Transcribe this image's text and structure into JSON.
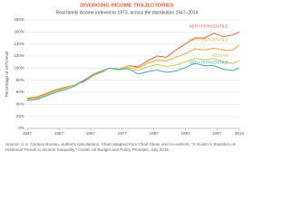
{
  "chart_data": {
    "type": "line",
    "title": "DIVERGING INCOME TRAJECTORIES",
    "subtitle": "Real family income indexed to 1973, across the distribution 1947–2014",
    "y_label": "Percentage of 1973 level",
    "x": [
      1947,
      1950,
      1953,
      1956,
      1959,
      1962,
      1965,
      1968,
      1971,
      1973,
      1976,
      1979,
      1982,
      1985,
      1988,
      1991,
      1994,
      1997,
      2000,
      2003,
      2006,
      2009,
      2012,
      2014
    ],
    "series": [
      {
        "name": "95TH PERCENTILE",
        "color": "#e8624a",
        "values": [
          50,
          52,
          58,
          64,
          68,
          72,
          78,
          88,
          94,
          100,
          98,
          104,
          102,
          112,
          120,
          118,
          130,
          140,
          150,
          150,
          158,
          152,
          155,
          160
        ]
      },
      {
        "name": "80TH PERCENTILE",
        "color": "#f4a430",
        "values": [
          49,
          51,
          57,
          63,
          67,
          72,
          80,
          88,
          94,
          100,
          98,
          104,
          100,
          108,
          113,
          112,
          118,
          124,
          132,
          130,
          133,
          130,
          130,
          138
        ]
      },
      {
        "name": "MEDIAN",
        "color": "#b9cf4c",
        "values": [
          48,
          50,
          56,
          62,
          66,
          72,
          80,
          89,
          95,
          100,
          97,
          101,
          96,
          102,
          106,
          103,
          105,
          110,
          116,
          114,
          116,
          110,
          108,
          112
        ]
      },
      {
        "name": "20TH PERCENTILE",
        "color": "#3fa7b5",
        "values": [
          46,
          48,
          54,
          60,
          64,
          70,
          80,
          90,
          96,
          100,
          98,
          99,
          90,
          94,
          97,
          93,
          95,
          101,
          108,
          104,
          104,
          98,
          96,
          100
        ]
      }
    ],
    "xlim": [
      1947,
      2014
    ],
    "xticks": [
      1947,
      1957,
      1967,
      1977,
      1987,
      1997,
      2007,
      2014
    ],
    "ylim": [
      0,
      180
    ],
    "yticks": [
      {
        "value": 0,
        "label": "0%"
      },
      {
        "value": 20,
        "label": "20%"
      },
      {
        "value": 40,
        "label": "40%"
      },
      {
        "value": 60,
        "label": "60%"
      },
      {
        "value": 80,
        "label": "80%"
      },
      {
        "value": 100,
        "label": "100%"
      },
      {
        "value": 120,
        "label": "120%"
      },
      {
        "value": 140,
        "label": "140%"
      },
      {
        "value": 160,
        "label": "160%"
      },
      {
        "value": 180,
        "label": "180%"
      }
    ],
    "grid": true,
    "source": "Source: U.S. Census Bureau, author's calculations. Chart adapted from Chad Stone and co-authors, “A Guide to Statistics on Historical Trends in Income Inequality,” Center on Budget and Policy Priorities, July 2016."
  }
}
